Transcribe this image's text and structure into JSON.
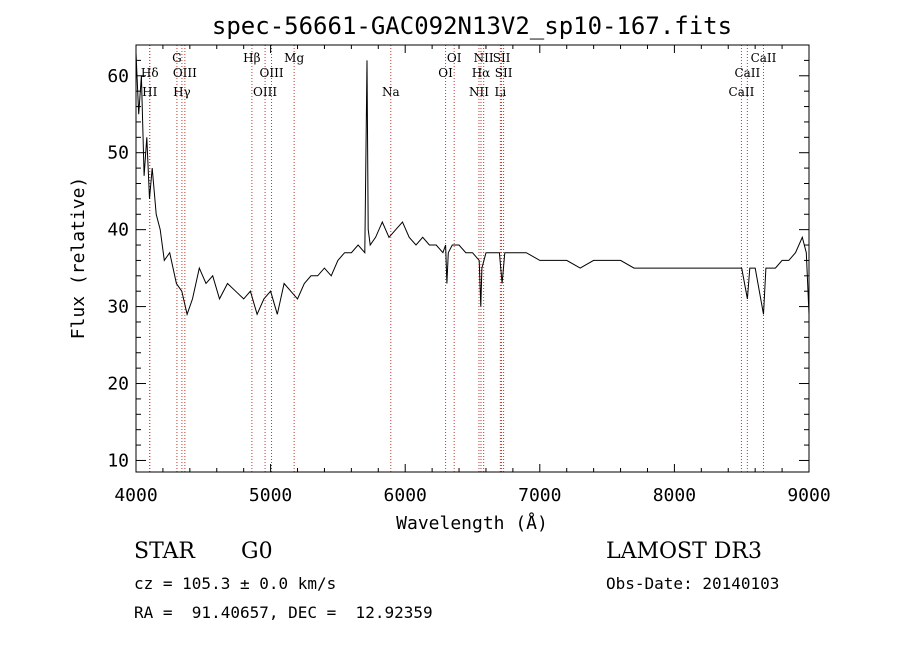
{
  "chart_data": {
    "type": "line",
    "title": "spec-56661-GAC092N13V2_sp10-167.fits",
    "xlabel": "Wavelength (Å)",
    "ylabel": "Flux (relative)",
    "xlim": [
      4000,
      9000
    ],
    "ylim": [
      8.5,
      64
    ],
    "xticks": [
      4000,
      5000,
      6000,
      7000,
      8000,
      9000
    ],
    "yticks": [
      10,
      20,
      30,
      40,
      50,
      60
    ],
    "grid": false,
    "series": [
      {
        "x": [
          4000,
          4020,
          4040,
          4060,
          4080,
          4100,
          4120,
          4150,
          4180,
          4210,
          4250,
          4300,
          4340,
          4380,
          4420,
          4470,
          4520,
          4570,
          4620,
          4680,
          4740,
          4800,
          4850,
          4900,
          4950,
          5000,
          5050,
          5100,
          5150,
          5200,
          5250,
          5300,
          5350,
          5400,
          5450,
          5500,
          5550,
          5600,
          5650,
          5700,
          5716,
          5725,
          5740,
          5780,
          5830,
          5880,
          5930,
          5980,
          6030,
          6080,
          6130,
          6180,
          6230,
          6280,
          6300,
          6310,
          6320,
          6350,
          6400,
          6450,
          6500,
          6550,
          6562,
          6570,
          6600,
          6650,
          6700,
          6720,
          6740,
          6800,
          6900,
          7000,
          7100,
          7200,
          7300,
          7400,
          7500,
          7600,
          7700,
          7800,
          7900,
          8000,
          8100,
          8200,
          8300,
          8400,
          8500,
          8542,
          8560,
          8600,
          8662,
          8680,
          8700,
          8750,
          8800,
          8850,
          8900,
          8950,
          8980,
          9000
        ],
        "y": [
          63,
          55,
          60,
          47,
          52,
          44,
          48,
          42,
          40,
          36,
          37,
          33,
          32,
          29,
          31,
          35,
          33,
          34,
          31,
          33,
          32,
          31,
          32,
          29,
          31,
          32,
          29,
          33,
          32,
          31,
          33,
          34,
          34,
          35,
          34,
          36,
          37,
          37,
          38,
          37,
          62,
          40,
          38,
          39,
          41,
          39,
          40,
          41,
          39,
          38,
          39,
          38,
          38,
          37,
          38,
          33,
          37,
          38,
          38,
          37,
          37,
          36,
          30,
          35,
          37,
          37,
          37,
          33,
          37,
          37,
          37,
          36,
          36,
          36,
          35,
          36,
          36,
          36,
          35,
          35,
          35,
          35,
          35,
          35,
          35,
          35,
          35,
          31,
          35,
          35,
          29,
          35,
          35,
          35,
          36,
          36,
          37,
          39,
          37,
          29
        ]
      }
    ],
    "lines": [
      {
        "x": 4102,
        "label": "Hδ",
        "row": 2
      },
      {
        "x": 4102,
        "label": "HI",
        "row": 4
      },
      {
        "x": 4304,
        "label": "G",
        "row": 1
      },
      {
        "x": 4341,
        "label": "Hγ",
        "row": 4
      },
      {
        "x": 4363,
        "label": "OIII",
        "row": 2
      },
      {
        "x": 4861,
        "label": "Hβ",
        "row": 1
      },
      {
        "x": 4959,
        "label": "OIII",
        "row": 4
      },
      {
        "x": 5007,
        "label": "OIII",
        "row": 2
      },
      {
        "x": 5175,
        "label": "Mg",
        "row": 1
      },
      {
        "x": 5893,
        "label": "Na",
        "row": 4
      },
      {
        "x": 6300,
        "label": "OI",
        "row": 3
      },
      {
        "x": 6364,
        "label": "OI",
        "row": 1
      },
      {
        "x": 6548,
        "label": "NII",
        "row": 4
      },
      {
        "x": 6563,
        "label": "Hα",
        "row": 2
      },
      {
        "x": 6583,
        "label": "NII",
        "row": 1
      },
      {
        "x": 6707,
        "label": "Li",
        "row": 4
      },
      {
        "x": 6716,
        "label": "SII",
        "row": 1
      },
      {
        "x": 6731,
        "label": "SII",
        "row": 2
      },
      {
        "x": 8498,
        "label": "CaII",
        "row": 4
      },
      {
        "x": 8542,
        "label": "CaII",
        "row": 2
      },
      {
        "x": 8662,
        "label": "CaII",
        "row": 1
      }
    ]
  },
  "info": {
    "class": "STAR",
    "subclass": "G0",
    "survey": "LAMOST DR3",
    "cz": "cz = 105.3 ± 0.0 km/s",
    "obs_date": "Obs-Date: 20140103",
    "radec": "RA =  91.40657, DEC =  12.92359"
  },
  "colors": {
    "line_marker": "#c0392b",
    "spectrum": "#000000"
  }
}
